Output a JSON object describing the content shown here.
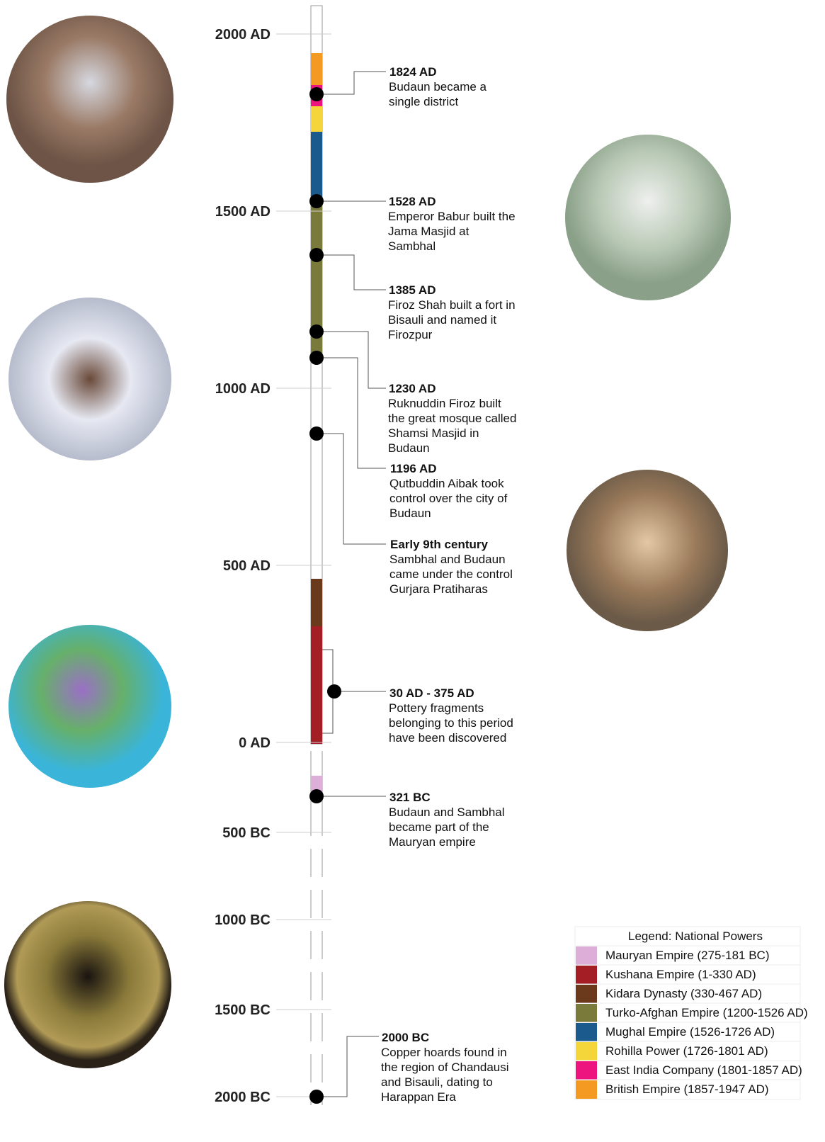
{
  "axis_labels": [
    "2000 AD",
    "1500 AD",
    "1000 AD",
    "500 AD",
    "0 AD",
    "500 BC",
    "1000 BC",
    "1500 BC",
    "2000 BC"
  ],
  "events": [
    {
      "date": "1824 AD",
      "lines": [
        "Budaun became a",
        "single district"
      ]
    },
    {
      "date": "1528 AD",
      "lines": [
        "Emperor Babur built the",
        "Jama Masjid at",
        "Sambhal"
      ]
    },
    {
      "date": "1385 AD",
      "lines": [
        "Firoz Shah built a fort in",
        "Bisauli and named it",
        "Firozpur"
      ]
    },
    {
      "date": "1230 AD",
      "lines": [
        "Ruknuddin Firoz built",
        "the great mosque called",
        "Shamsi Masjid in",
        "Budaun"
      ]
    },
    {
      "date": "1196 AD",
      "lines": [
        "Qutbuddin Aibak took",
        "control over the city of",
        "Budaun"
      ]
    },
    {
      "date": "Early 9th century",
      "lines": [
        "Sambhal and Budaun",
        "came under the control",
        "Gurjara Pratiharas"
      ]
    },
    {
      "date": "30 AD - 375 AD",
      "lines": [
        "Pottery fragments",
        "belonging to this period",
        "have been discovered"
      ]
    },
    {
      "date": "321 BC",
      "lines": [
        "Budaun and Sambhal",
        "became part of the",
        "Mauryan empire"
      ]
    },
    {
      "date": "2000 BC",
      "lines": [
        "Copper hoards found in",
        "the region of Chandausi",
        "and Bisauli, dating to",
        "Harappan Era"
      ]
    }
  ],
  "legend": {
    "title": "Legend: National Powers",
    "items": [
      {
        "label": "Mauryan Empire (275-181 BC)",
        "color": "#dcaed8"
      },
      {
        "label": "Kushana Empire (1-330 AD)",
        "color": "#a31f25"
      },
      {
        "label": "Kidara Dynasty (330-467 AD)",
        "color": "#6b3a1c"
      },
      {
        "label": "Turko-Afghan Empire (1200-1526 AD)",
        "color": "#7a7a3a"
      },
      {
        "label": "Mughal Empire (1526-1726 AD)",
        "color": "#1a5a8c"
      },
      {
        "label": "Rohilla Power (1726-1801 AD)",
        "color": "#f5d63a"
      },
      {
        "label": "East India Company (1801-1857 AD)",
        "color": "#ee147f"
      },
      {
        "label": "British Empire (1857-1947 AD)",
        "color": "#f49a22"
      }
    ]
  }
}
